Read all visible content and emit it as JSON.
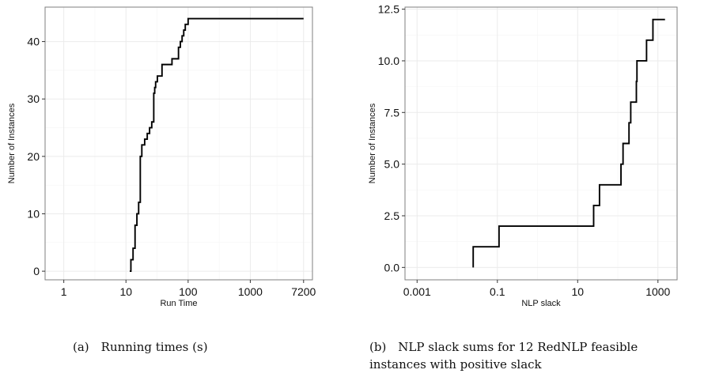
{
  "chart_data": [
    {
      "type": "line",
      "step": true,
      "x_scale": "log",
      "xlabel": "Run Time",
      "ylabel": "Number of Instances",
      "xlim": [
        0.5,
        10000
      ],
      "ylim": [
        -1.5,
        46
      ],
      "xticks": [
        1,
        10,
        100,
        1000,
        7200
      ],
      "xtick_labels": [
        "1",
        "10",
        "100",
        "1000",
        "7200"
      ],
      "yticks": [
        0,
        10,
        20,
        30,
        40
      ],
      "ytick_labels": [
        "0",
        "10",
        "20",
        "30",
        "40"
      ],
      "grid": true,
      "caption": "(a) Running times (s)",
      "series": [
        {
          "x": [
            11.5,
            12,
            13,
            14,
            15,
            16,
            17,
            18,
            20,
            22,
            24,
            26,
            28,
            29,
            30,
            32,
            35,
            38,
            42,
            55,
            65,
            70,
            75,
            80,
            85,
            90,
            100,
            7200
          ],
          "y": [
            0,
            2,
            4,
            8,
            10,
            12,
            20,
            22,
            23,
            24,
            25,
            26,
            31,
            32,
            33,
            34,
            34,
            36,
            36,
            37,
            37,
            39,
            40,
            41,
            42,
            43,
            44,
            44
          ]
        }
      ]
    },
    {
      "type": "line",
      "step": true,
      "x_scale": "log",
      "xlabel": "NLP slack",
      "ylabel": "Number of Instances",
      "xlim": [
        0.0005,
        3000
      ],
      "ylim": [
        -0.6,
        12.6
      ],
      "xticks": [
        0.001,
        0.1,
        10,
        1000
      ],
      "xtick_labels": [
        "0.001",
        "0.1",
        "10",
        "1000"
      ],
      "yticks": [
        0,
        2.5,
        5,
        7.5,
        10,
        12.5
      ],
      "ytick_labels": [
        "0.0",
        "2.5",
        "5.0",
        "7.5",
        "10.0",
        "12.5"
      ],
      "grid": true,
      "caption_lines": [
        "(b) NLP slack sums for 12 RedNLP feasible",
        "instances with positive slack"
      ],
      "series": [
        {
          "x": [
            0.025,
            0.11,
            25,
            35,
            120,
            135,
            190,
            210,
            290,
            300,
            520,
            750,
            1500
          ],
          "y": [
            1,
            2,
            3,
            4,
            5,
            6,
            7,
            8,
            9,
            10,
            11,
            12,
            12
          ]
        }
      ]
    }
  ],
  "colors": {
    "line": "#000000",
    "grid": "#ebebeb",
    "axis": "#7f7f7f"
  }
}
